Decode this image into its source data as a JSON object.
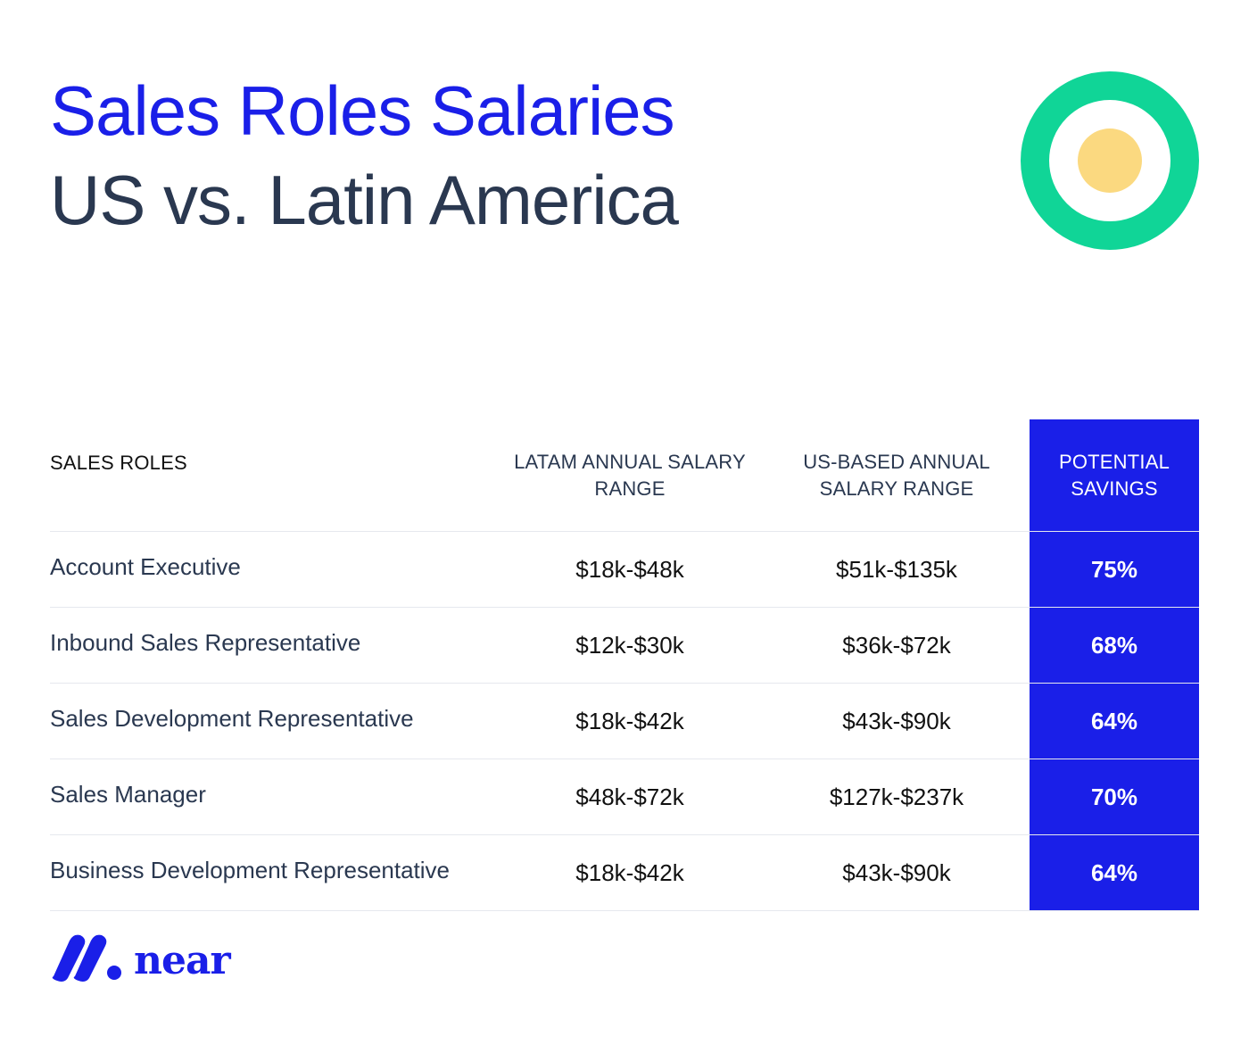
{
  "header": {
    "title_line1": "Sales Roles Salaries",
    "title_line2": "US vs. Latin America"
  },
  "colors": {
    "accent_blue": "#1a1fe8",
    "dark_text": "#2a3850",
    "ring_green": "#10d597",
    "dot_yellow": "#fbd980"
  },
  "table": {
    "columns": {
      "role": "SALES ROLES",
      "latam": "LATAM ANNUAL SALARY RANGE",
      "us": "US-BASED ANNUAL SALARY RANGE",
      "savings": "POTENTIAL SAVINGS"
    },
    "rows": [
      {
        "role": "Account Executive",
        "latam": "$18k-$48k",
        "us": "$51k-$135k",
        "savings": "75%"
      },
      {
        "role": "Inbound Sales Representative",
        "latam": "$12k-$30k",
        "us": "$36k-$72k",
        "savings": "68%"
      },
      {
        "role": "Sales Development Representative",
        "latam": "$18k-$42k",
        "us": "$43k-$90k",
        "savings": "64%"
      },
      {
        "role": "Sales Manager",
        "latam": "$48k-$72k",
        "us": "$127k-$237k",
        "savings": "70%"
      },
      {
        "role": "Business Development Representative",
        "latam": "$18k-$42k",
        "us": "$43k-$90k",
        "savings": "64%"
      }
    ]
  },
  "brand": {
    "logo_word": "near",
    "logo_icon": "near-logo-icon"
  }
}
